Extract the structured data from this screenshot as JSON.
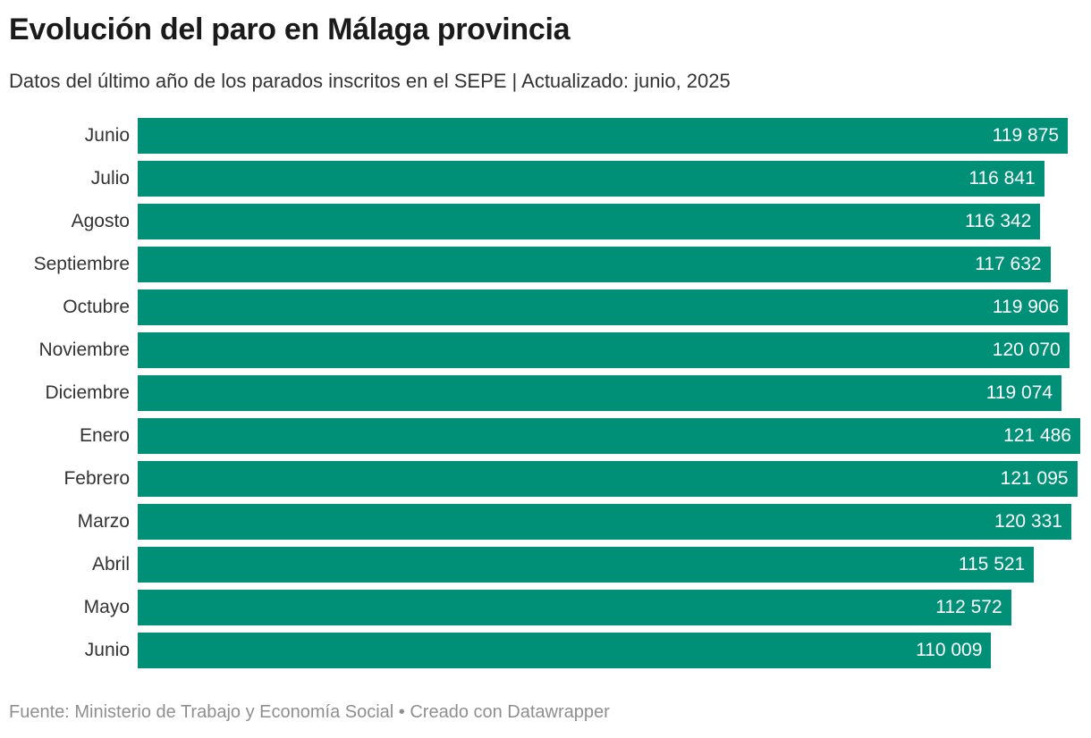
{
  "header": {
    "title": "Evolución del paro en Málaga provincia",
    "subtitle": "Datos del último año de los parados inscritos en el SEPE | Actualizado: junio, 2025"
  },
  "chart_data": {
    "type": "bar",
    "orientation": "horizontal",
    "title": "Evolución del paro en Málaga provincia",
    "subtitle": "Datos del último año de los parados inscritos en el SEPE | Actualizado: junio, 2025",
    "categories": [
      "Junio",
      "Julio",
      "Agosto",
      "Septiembre",
      "Octubre",
      "Noviembre",
      "Diciembre",
      "Enero",
      "Febrero",
      "Marzo",
      "Abril",
      "Mayo",
      "Junio"
    ],
    "values": [
      119875,
      116841,
      116342,
      117632,
      119906,
      120070,
      119074,
      121486,
      121095,
      120331,
      115521,
      112572,
      110009
    ],
    "value_labels": [
      "119 875",
      "116 841",
      "116 342",
      "117 632",
      "119 906",
      "120 070",
      "119 074",
      "121 486",
      "121 095",
      "120 331",
      "115 521",
      "112 572",
      "110 009"
    ],
    "xlabel": "",
    "ylabel": "",
    "xlim": [
      0,
      121486
    ],
    "grid": false,
    "legend": false,
    "bar_color": "#009077",
    "value_label_color": "#ffffff"
  },
  "footer": {
    "source_text": "Fuente: Ministerio de Trabajo y Economía Social",
    "separator": " • ",
    "attribution_text": "Creado con Datawrapper"
  }
}
